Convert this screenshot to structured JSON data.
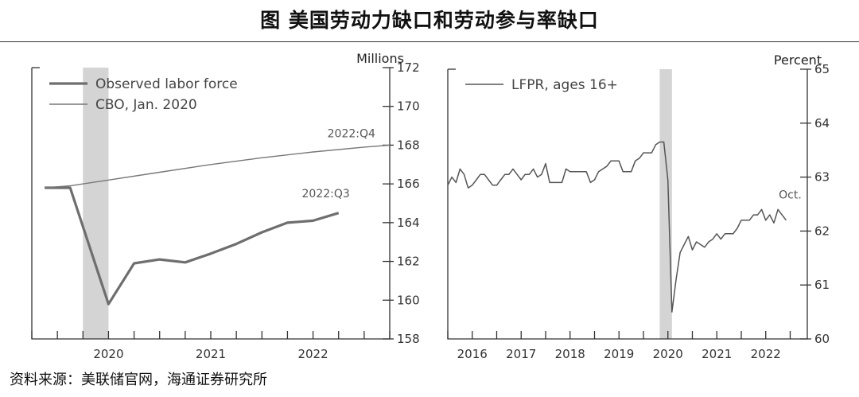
{
  "title": "图   美国劳动力缺口和劳动参与率缺口",
  "source": "资料来源：美联储官网，海通证券研究所",
  "colors": {
    "observed": "#6e6e6e",
    "cbo": "#777777",
    "lfpr": "#555555",
    "recession": "#d4d4d4"
  },
  "chart_data": [
    {
      "type": "line",
      "unit": "Millions",
      "ylim": [
        158,
        172
      ],
      "yticks": [
        158,
        160,
        162,
        164,
        166,
        168,
        170,
        172
      ],
      "xlim": [
        2019.25,
        2022.75
      ],
      "xtick_labels": [
        {
          "label": "2020",
          "x": 2020.0
        },
        {
          "label": "2021",
          "x": 2021.0
        },
        {
          "label": "2022",
          "x": 2022.0
        }
      ],
      "recession": [
        2019.75,
        2020.0
      ],
      "legend": [
        "Observed labor force",
        "CBO, Jan. 2020"
      ],
      "annotations": [
        {
          "text": "2022:Q4",
          "x": 2022.375,
          "y": 168.4
        },
        {
          "text": "2022:Q3",
          "x": 2022.125,
          "y": 165.3
        }
      ],
      "series": [
        {
          "name": "Observed labor force",
          "points": [
            [
              2019.375,
              165.8
            ],
            [
              2019.625,
              165.8
            ],
            [
              2020.0,
              159.8
            ],
            [
              2020.25,
              161.9
            ],
            [
              2020.5,
              162.1
            ],
            [
              2020.75,
              161.95
            ],
            [
              2021.0,
              162.4
            ],
            [
              2021.25,
              162.9
            ],
            [
              2021.5,
              163.5
            ],
            [
              2021.75,
              164.0
            ],
            [
              2022.0,
              164.1
            ],
            [
              2022.25,
              164.5
            ]
          ]
        },
        {
          "name": "CBO, Jan. 2020",
          "points": [
            [
              2019.375,
              165.8
            ],
            [
              2019.625,
              165.9
            ],
            [
              2020.0,
              166.2
            ],
            [
              2020.5,
              166.6
            ],
            [
              2021.0,
              167.0
            ],
            [
              2021.5,
              167.35
            ],
            [
              2022.0,
              167.65
            ],
            [
              2022.5,
              167.9
            ],
            [
              2022.75,
              168.0
            ]
          ]
        }
      ]
    },
    {
      "type": "line",
      "unit": "Percent",
      "ylim": [
        60,
        65
      ],
      "yticks": [
        60,
        61,
        62,
        63,
        64,
        65
      ],
      "xlim": [
        2015.5,
        2022.85
      ],
      "xtick_labels": [
        {
          "label": "2016",
          "x": 2016.0
        },
        {
          "label": "2017",
          "x": 2017.0
        },
        {
          "label": "2018",
          "x": 2018.0
        },
        {
          "label": "2019",
          "x": 2019.0
        },
        {
          "label": "2020",
          "x": 2020.0
        },
        {
          "label": "2021",
          "x": 2021.0
        },
        {
          "label": "2022",
          "x": 2022.0
        }
      ],
      "recession": [
        2019.833,
        2020.083
      ],
      "legend": [
        "LFPR, ages 16+"
      ],
      "annotations": [
        {
          "text": "Oct.",
          "x": 2022.5,
          "y": 62.6
        }
      ],
      "series": [
        {
          "name": "LFPR, ages 16+",
          "points": [
            [
              2015.5,
              62.85
            ],
            [
              2015.583,
              63.0
            ],
            [
              2015.667,
              62.9
            ],
            [
              2015.75,
              63.15
            ],
            [
              2015.833,
              63.05
            ],
            [
              2015.917,
              62.8
            ],
            [
              2016.0,
              62.85
            ],
            [
              2016.083,
              62.95
            ],
            [
              2016.167,
              63.05
            ],
            [
              2016.25,
              63.05
            ],
            [
              2016.333,
              62.95
            ],
            [
              2016.417,
              62.85
            ],
            [
              2016.5,
              62.85
            ],
            [
              2016.583,
              62.95
            ],
            [
              2016.667,
              63.05
            ],
            [
              2016.75,
              63.05
            ],
            [
              2016.833,
              63.15
            ],
            [
              2016.917,
              63.05
            ],
            [
              2017.0,
              62.95
            ],
            [
              2017.083,
              63.05
            ],
            [
              2017.167,
              63.05
            ],
            [
              2017.25,
              63.15
            ],
            [
              2017.333,
              63.0
            ],
            [
              2017.417,
              63.05
            ],
            [
              2017.5,
              63.25
            ],
            [
              2017.583,
              62.9
            ],
            [
              2017.667,
              62.9
            ],
            [
              2017.75,
              62.9
            ],
            [
              2017.833,
              62.9
            ],
            [
              2017.917,
              63.15
            ],
            [
              2018.0,
              63.1
            ],
            [
              2018.083,
              63.1
            ],
            [
              2018.167,
              63.1
            ],
            [
              2018.25,
              63.1
            ],
            [
              2018.333,
              63.1
            ],
            [
              2018.417,
              62.9
            ],
            [
              2018.5,
              62.95
            ],
            [
              2018.583,
              63.1
            ],
            [
              2018.667,
              63.15
            ],
            [
              2018.75,
              63.2
            ],
            [
              2018.833,
              63.3
            ],
            [
              2018.917,
              63.3
            ],
            [
              2019.0,
              63.3
            ],
            [
              2019.083,
              63.1
            ],
            [
              2019.167,
              63.1
            ],
            [
              2019.25,
              63.1
            ],
            [
              2019.333,
              63.3
            ],
            [
              2019.417,
              63.35
            ],
            [
              2019.5,
              63.45
            ],
            [
              2019.583,
              63.45
            ],
            [
              2019.667,
              63.45
            ],
            [
              2019.75,
              63.6
            ],
            [
              2019.833,
              63.65
            ],
            [
              2019.917,
              63.65
            ],
            [
              2020.0,
              62.95
            ],
            [
              2020.083,
              60.5
            ],
            [
              2020.167,
              61.1
            ],
            [
              2020.25,
              61.6
            ],
            [
              2020.333,
              61.75
            ],
            [
              2020.417,
              61.9
            ],
            [
              2020.5,
              61.65
            ],
            [
              2020.583,
              61.8
            ],
            [
              2020.667,
              61.75
            ],
            [
              2020.75,
              61.7
            ],
            [
              2020.833,
              61.8
            ],
            [
              2020.917,
              61.85
            ],
            [
              2021.0,
              61.95
            ],
            [
              2021.083,
              61.85
            ],
            [
              2021.167,
              61.95
            ],
            [
              2021.25,
              61.95
            ],
            [
              2021.333,
              61.95
            ],
            [
              2021.417,
              62.05
            ],
            [
              2021.5,
              62.2
            ],
            [
              2021.583,
              62.2
            ],
            [
              2021.667,
              62.2
            ],
            [
              2021.75,
              62.3
            ],
            [
              2021.833,
              62.3
            ],
            [
              2021.917,
              62.4
            ],
            [
              2022.0,
              62.2
            ],
            [
              2022.083,
              62.3
            ],
            [
              2022.167,
              62.15
            ],
            [
              2022.25,
              62.4
            ],
            [
              2022.333,
              62.3
            ],
            [
              2022.417,
              62.2
            ]
          ]
        }
      ]
    }
  ]
}
